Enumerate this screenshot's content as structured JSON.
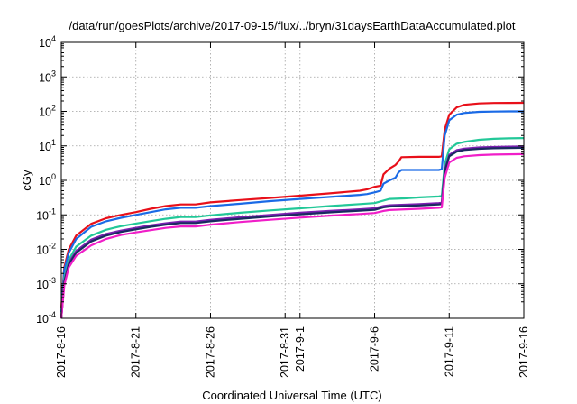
{
  "chart_data": {
    "type": "line",
    "title": "/data/run/goesPlots/archive/2017-09-15/flux/../bryn/31daysEarthDataAccumulated.plot",
    "xlabel": "Coordinated Universal Time (UTC)",
    "ylabel": "cGy",
    "x_ticks": [
      {
        "label": "2017-8-16",
        "day": 0
      },
      {
        "label": "2017-8-21",
        "day": 5
      },
      {
        "label": "2017-8-26",
        "day": 10
      },
      {
        "label": "2017-8-31",
        "day": 15
      },
      {
        "label": "2017-9-1",
        "day": 16
      },
      {
        "label": "2017-9-6",
        "day": 21
      },
      {
        "label": "2017-9-11",
        "day": 26
      },
      {
        "label": "2017-9-16",
        "day": 31
      }
    ],
    "xlim": [
      0,
      31
    ],
    "yscale": "log",
    "ylim": [
      0.0001,
      10000
    ],
    "y_ticks": [
      {
        "base": "10",
        "exp": "-4",
        "value": 0.0001
      },
      {
        "base": "10",
        "exp": "-3",
        "value": 0.001
      },
      {
        "base": "10",
        "exp": "-2",
        "value": 0.01
      },
      {
        "base": "10",
        "exp": "-1",
        "value": 0.1
      },
      {
        "base": "10",
        "exp": "0",
        "value": 1
      },
      {
        "base": "10",
        "exp": "1",
        "value": 10
      },
      {
        "base": "10",
        "exp": "2",
        "value": 100
      },
      {
        "base": "10",
        "exp": "3",
        "value": 1000
      },
      {
        "base": "10",
        "exp": "4",
        "value": 10000
      }
    ],
    "grid": true,
    "legend": "none",
    "series": [
      {
        "color": "#e8101a",
        "points": [
          [
            0,
            0.0002
          ],
          [
            0.2,
            0.003
          ],
          [
            0.5,
            0.01
          ],
          [
            1,
            0.025
          ],
          [
            2,
            0.055
          ],
          [
            3,
            0.08
          ],
          [
            4,
            0.1
          ],
          [
            5,
            0.12
          ],
          [
            6,
            0.15
          ],
          [
            7,
            0.18
          ],
          [
            8,
            0.2
          ],
          [
            9,
            0.2
          ],
          [
            10,
            0.23
          ],
          [
            12,
            0.27
          ],
          [
            14,
            0.31
          ],
          [
            16,
            0.36
          ],
          [
            18,
            0.42
          ],
          [
            20,
            0.5
          ],
          [
            20.5,
            0.55
          ],
          [
            21,
            0.65
          ],
          [
            21.4,
            0.7
          ],
          [
            21.6,
            1.5
          ],
          [
            22,
            2.2
          ],
          [
            22.4,
            2.8
          ],
          [
            22.6,
            3.5
          ],
          [
            22.8,
            4.7
          ],
          [
            24,
            4.8
          ],
          [
            25.3,
            4.8
          ],
          [
            25.5,
            5
          ],
          [
            25.7,
            30
          ],
          [
            26,
            80
          ],
          [
            26.5,
            130
          ],
          [
            27,
            155
          ],
          [
            28,
            170
          ],
          [
            29,
            175
          ],
          [
            30,
            176
          ],
          [
            31,
            177
          ]
        ]
      },
      {
        "color": "#1a6ae6",
        "points": [
          [
            0,
            0.00015
          ],
          [
            0.2,
            0.0025
          ],
          [
            0.5,
            0.008
          ],
          [
            1,
            0.02
          ],
          [
            2,
            0.045
          ],
          [
            3,
            0.065
          ],
          [
            4,
            0.082
          ],
          [
            5,
            0.1
          ],
          [
            6,
            0.12
          ],
          [
            7,
            0.145
          ],
          [
            8,
            0.16
          ],
          [
            9,
            0.16
          ],
          [
            10,
            0.18
          ],
          [
            12,
            0.21
          ],
          [
            14,
            0.25
          ],
          [
            16,
            0.29
          ],
          [
            18,
            0.33
          ],
          [
            20,
            0.38
          ],
          [
            20.5,
            0.4
          ],
          [
            21,
            0.45
          ],
          [
            21.4,
            0.5
          ],
          [
            21.6,
            0.8
          ],
          [
            22,
            1.0
          ],
          [
            22.4,
            1.2
          ],
          [
            22.6,
            1.7
          ],
          [
            22.8,
            2.0
          ],
          [
            24,
            2.0
          ],
          [
            25.3,
            2.0
          ],
          [
            25.5,
            2.1
          ],
          [
            25.7,
            20
          ],
          [
            26,
            55
          ],
          [
            26.5,
            80
          ],
          [
            27,
            90
          ],
          [
            28,
            97
          ],
          [
            29,
            99
          ],
          [
            30,
            100
          ],
          [
            31,
            100
          ]
        ]
      },
      {
        "color": "#22c898",
        "points": [
          [
            0,
            0.0001
          ],
          [
            0.2,
            0.0015
          ],
          [
            0.5,
            0.005
          ],
          [
            1,
            0.012
          ],
          [
            2,
            0.025
          ],
          [
            3,
            0.037
          ],
          [
            4,
            0.047
          ],
          [
            5,
            0.056
          ],
          [
            6,
            0.066
          ],
          [
            7,
            0.077
          ],
          [
            8,
            0.087
          ],
          [
            9,
            0.087
          ],
          [
            10,
            0.097
          ],
          [
            12,
            0.115
          ],
          [
            14,
            0.135
          ],
          [
            16,
            0.155
          ],
          [
            18,
            0.18
          ],
          [
            20,
            0.205
          ],
          [
            21,
            0.22
          ],
          [
            21.6,
            0.26
          ],
          [
            22,
            0.29
          ],
          [
            23,
            0.3
          ],
          [
            24,
            0.32
          ],
          [
            25.3,
            0.34
          ],
          [
            25.5,
            0.35
          ],
          [
            25.7,
            3
          ],
          [
            26,
            8
          ],
          [
            26.5,
            11.5
          ],
          [
            27,
            13
          ],
          [
            28,
            15
          ],
          [
            29,
            16
          ],
          [
            30,
            16.5
          ],
          [
            31,
            16.8
          ]
        ]
      },
      {
        "color": "#7a1fb0",
        "points": [
          [
            0,
            0.0001
          ],
          [
            0.2,
            0.0012
          ],
          [
            0.5,
            0.004
          ],
          [
            1,
            0.009
          ],
          [
            2,
            0.019
          ],
          [
            3,
            0.028
          ],
          [
            4,
            0.035
          ],
          [
            5,
            0.042
          ],
          [
            6,
            0.05
          ],
          [
            7,
            0.057
          ],
          [
            8,
            0.064
          ],
          [
            9,
            0.064
          ],
          [
            10,
            0.072
          ],
          [
            12,
            0.085
          ],
          [
            14,
            0.1
          ],
          [
            16,
            0.115
          ],
          [
            18,
            0.13
          ],
          [
            20,
            0.145
          ],
          [
            21,
            0.155
          ],
          [
            21.6,
            0.18
          ],
          [
            22,
            0.19
          ],
          [
            24,
            0.205
          ],
          [
            25.3,
            0.22
          ],
          [
            25.5,
            0.225
          ],
          [
            25.7,
            2
          ],
          [
            26,
            5.5
          ],
          [
            26.5,
            7.5
          ],
          [
            27,
            8.3
          ],
          [
            28,
            9
          ],
          [
            29,
            9.3
          ],
          [
            30,
            9.5
          ],
          [
            31,
            9.6
          ]
        ]
      },
      {
        "color": "#1a2a60",
        "points": [
          [
            0,
            0.0001
          ],
          [
            0.2,
            0.0011
          ],
          [
            0.5,
            0.0036
          ],
          [
            1,
            0.008
          ],
          [
            2,
            0.017
          ],
          [
            3,
            0.025
          ],
          [
            4,
            0.032
          ],
          [
            5,
            0.038
          ],
          [
            6,
            0.045
          ],
          [
            7,
            0.052
          ],
          [
            8,
            0.058
          ],
          [
            9,
            0.058
          ],
          [
            10,
            0.065
          ],
          [
            12,
            0.077
          ],
          [
            14,
            0.09
          ],
          [
            16,
            0.104
          ],
          [
            18,
            0.118
          ],
          [
            20,
            0.132
          ],
          [
            21,
            0.14
          ],
          [
            21.6,
            0.165
          ],
          [
            22,
            0.175
          ],
          [
            24,
            0.188
          ],
          [
            25.3,
            0.2
          ],
          [
            25.5,
            0.205
          ],
          [
            25.7,
            1.8
          ],
          [
            26,
            5
          ],
          [
            26.5,
            6.8
          ],
          [
            27,
            7.6
          ],
          [
            28,
            8.2
          ],
          [
            29,
            8.5
          ],
          [
            30,
            8.7
          ],
          [
            31,
            8.8
          ]
        ]
      },
      {
        "color": "#f01ec8",
        "points": [
          [
            0,
            0.0001
          ],
          [
            0.2,
            0.0009
          ],
          [
            0.5,
            0.003
          ],
          [
            1,
            0.0065
          ],
          [
            2,
            0.013
          ],
          [
            3,
            0.02
          ],
          [
            4,
            0.026
          ],
          [
            5,
            0.031
          ],
          [
            6,
            0.036
          ],
          [
            7,
            0.042
          ],
          [
            8,
            0.046
          ],
          [
            9,
            0.046
          ],
          [
            10,
            0.052
          ],
          [
            12,
            0.062
          ],
          [
            14,
            0.072
          ],
          [
            16,
            0.083
          ],
          [
            18,
            0.095
          ],
          [
            20,
            0.106
          ],
          [
            21,
            0.113
          ],
          [
            21.6,
            0.13
          ],
          [
            22,
            0.138
          ],
          [
            24,
            0.15
          ],
          [
            25.3,
            0.16
          ],
          [
            25.5,
            0.165
          ],
          [
            25.7,
            1.2
          ],
          [
            26,
            3.3
          ],
          [
            26.5,
            4.5
          ],
          [
            27,
            5.0
          ],
          [
            28,
            5.4
          ],
          [
            29,
            5.6
          ],
          [
            30,
            5.7
          ],
          [
            31,
            5.75
          ]
        ]
      }
    ]
  }
}
